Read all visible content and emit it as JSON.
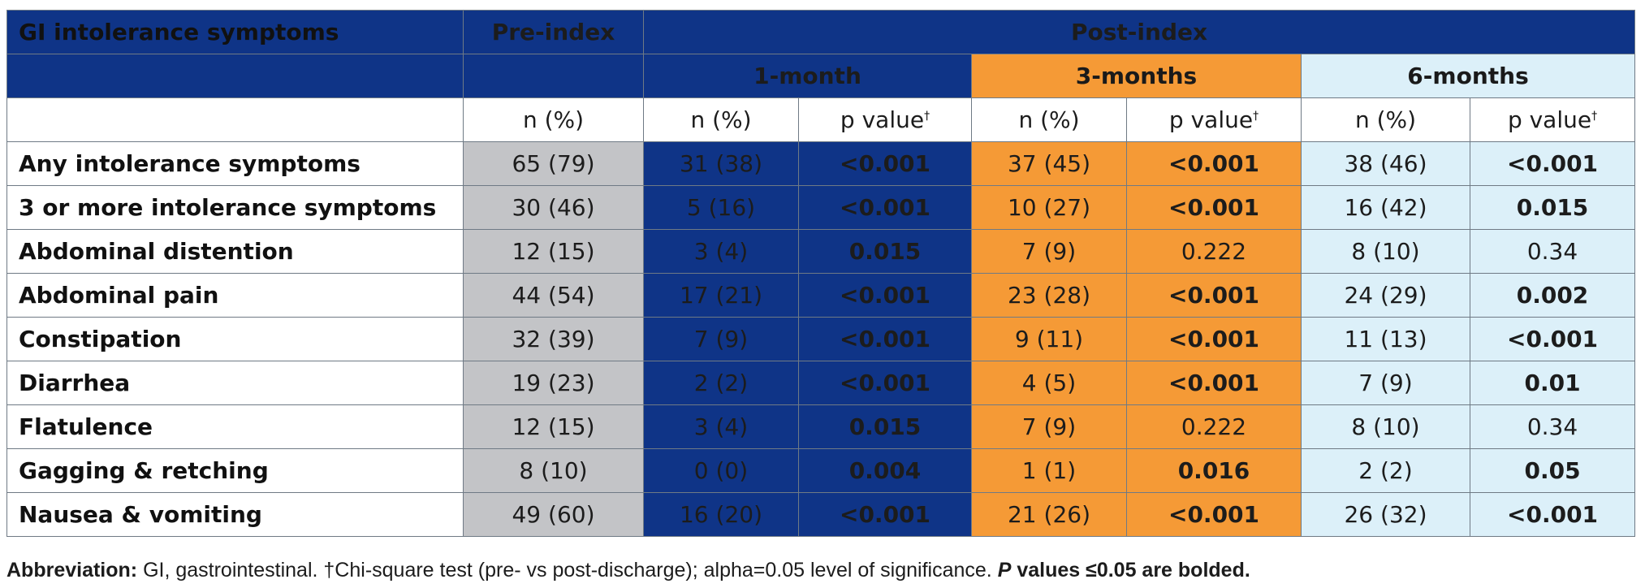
{
  "table": {
    "header": {
      "row_label": "GI intolerance symptoms",
      "pre_index": "Pre-index",
      "post_index": "Post-index",
      "periods": [
        "1-month",
        "3-months",
        "6-months"
      ],
      "n_pct": "n (%)",
      "p_value": "p value",
      "dagger": "†"
    },
    "rows": [
      {
        "label": "Any intolerance symptoms",
        "pre": "65 (79)",
        "m1_n": "31 (38)",
        "m1_p": "<0.001",
        "m3_n": "37 (45)",
        "m3_p": "<0.001",
        "m6_n": "38 (46)",
        "m6_p": "<0.001"
      },
      {
        "label": "3 or more intolerance symptoms",
        "pre": "30 (46)",
        "m1_n": "5 (16)",
        "m1_p": "<0.001",
        "m3_n": "10 (27)",
        "m3_p": "<0.001",
        "m6_n": "16 (42)",
        "m6_p": "0.015"
      },
      {
        "label": "Abdominal distention",
        "pre": "12 (15)",
        "m1_n": "3 (4)",
        "m1_p": "0.015",
        "m3_n": "7 (9)",
        "m3_p": "0.222",
        "m6_n": "8 (10)",
        "m6_p": "0.34"
      },
      {
        "label": "Abdominal pain",
        "pre": "44 (54)",
        "m1_n": "17 (21)",
        "m1_p": "<0.001",
        "m3_n": "23 (28)",
        "m3_p": "<0.001",
        "m6_n": "24 (29)",
        "m6_p": "0.002"
      },
      {
        "label": "Constipation",
        "pre": "32 (39)",
        "m1_n": "7 (9)",
        "m1_p": "<0.001",
        "m3_n": "9 (11)",
        "m3_p": "<0.001",
        "m6_n": "11 (13)",
        "m6_p": "<0.001"
      },
      {
        "label": "Diarrhea",
        "pre": "19 (23)",
        "m1_n": "2 (2)",
        "m1_p": "<0.001",
        "m3_n": "4 (5)",
        "m3_p": "<0.001",
        "m6_n": "7 (9)",
        "m6_p": "0.01"
      },
      {
        "label": "Flatulence",
        "pre": "12 (15)",
        "m1_n": "3 (4)",
        "m1_p": "0.015",
        "m3_n": "7 (9)",
        "m3_p": "0.222",
        "m6_n": "8 (10)",
        "m6_p": "0.34"
      },
      {
        "label": "Gagging & retching",
        "pre": "8 (10)",
        "m1_n": "0 (0)",
        "m1_p": "0.004",
        "m3_n": "1 (1)",
        "m3_p": "0.016",
        "m6_n": "2 (2)",
        "m6_p": "0.05"
      },
      {
        "label": "Nausea & vomiting",
        "pre": "49 (60)",
        "m1_n": "16 (20)",
        "m1_p": "<0.001",
        "m3_n": "21 (26)",
        "m3_p": "<0.001",
        "m6_n": "26 (32)",
        "m6_p": "<0.001"
      }
    ]
  },
  "footnote": {
    "abbrev_label": "Abbreviation:",
    "text": " GI, gastrointestinal. †Chi-square test (pre- vs post-discharge); alpha=0.05 level of significance. ",
    "p_italic": "P",
    "bold_note": " values ≤0.05 are bolded."
  },
  "colors": {
    "navy": "#0f3487",
    "orange": "#f59a36",
    "light_blue": "#dcf0f9",
    "gray": "#c3c4c7"
  }
}
